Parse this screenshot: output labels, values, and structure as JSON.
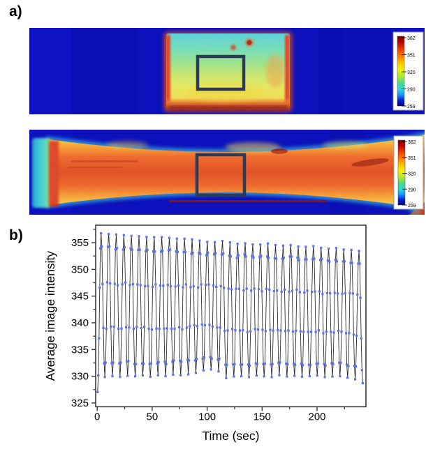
{
  "figure": {
    "label_a": "a)",
    "label_b": "b)"
  },
  "panel_a": {
    "description": "infrared thermal image of rectangular specimen face with region-of-interest box",
    "colorbar": {
      "values": [
        "382",
        "351",
        "320",
        "290",
        "259"
      ]
    }
  },
  "panel_b": {
    "description": "infrared thermal image of dogbone tensile specimen with region-of-interest box",
    "colorbar": {
      "values": [
        "382",
        "351",
        "320",
        "290",
        "259"
      ]
    }
  },
  "chart_data": {
    "type": "line",
    "title": "",
    "xlabel": "Time (sec)",
    "ylabel": "Average image intensity",
    "xlim": [
      -1.5,
      245
    ],
    "ylim": [
      324.3,
      358.4
    ],
    "x_ticks": [
      0,
      50,
      100,
      150,
      200
    ],
    "x_minor_ticks": [
      25,
      75,
      125,
      175,
      225
    ],
    "y_ticks": [
      325,
      330,
      335,
      340,
      345,
      350,
      355
    ],
    "y_minor_ticks": [
      327.5,
      332.5,
      337.5,
      342.5,
      347.5,
      352.5,
      357.5
    ],
    "grid": false,
    "legend": "none",
    "marker": "square",
    "marker_color": "#5b72e8",
    "line_color": "#2b2b2b",
    "series": [
      {
        "name": "average image intensity of ROI",
        "start_point": {
          "t": 0.4,
          "y": 327.1
        },
        "first_peak_t": 3.5,
        "period_sec": 6.9,
        "samples_per_half_cycle": 5,
        "peaks": [
          356.8,
          356.6,
          356.5,
          356.4,
          356.3,
          356.2,
          356.1,
          356.0,
          356.0,
          355.9,
          355.8,
          355.7,
          355.6,
          355.4,
          355.2,
          355.1,
          355.3,
          355.0,
          354.8,
          354.9,
          354.7,
          354.6,
          354.8,
          354.5,
          354.4,
          354.5,
          354.3,
          354.2,
          354.3,
          354.0,
          353.9,
          354.0,
          353.7,
          353.6,
          353.4
        ],
        "troughs": [
          329.8,
          330.0,
          329.9,
          330.1,
          330.0,
          330.1,
          329.9,
          330.2,
          330.0,
          330.3,
          330.2,
          330.4,
          330.7,
          331.1,
          331.3,
          330.9,
          329.6,
          329.9,
          330.0,
          329.8,
          330.1,
          330.0,
          329.9,
          330.2,
          330.0,
          330.1,
          329.9,
          330.0,
          330.1,
          329.8,
          329.9,
          330.0,
          329.7,
          329.4,
          328.7
        ]
      }
    ]
  }
}
